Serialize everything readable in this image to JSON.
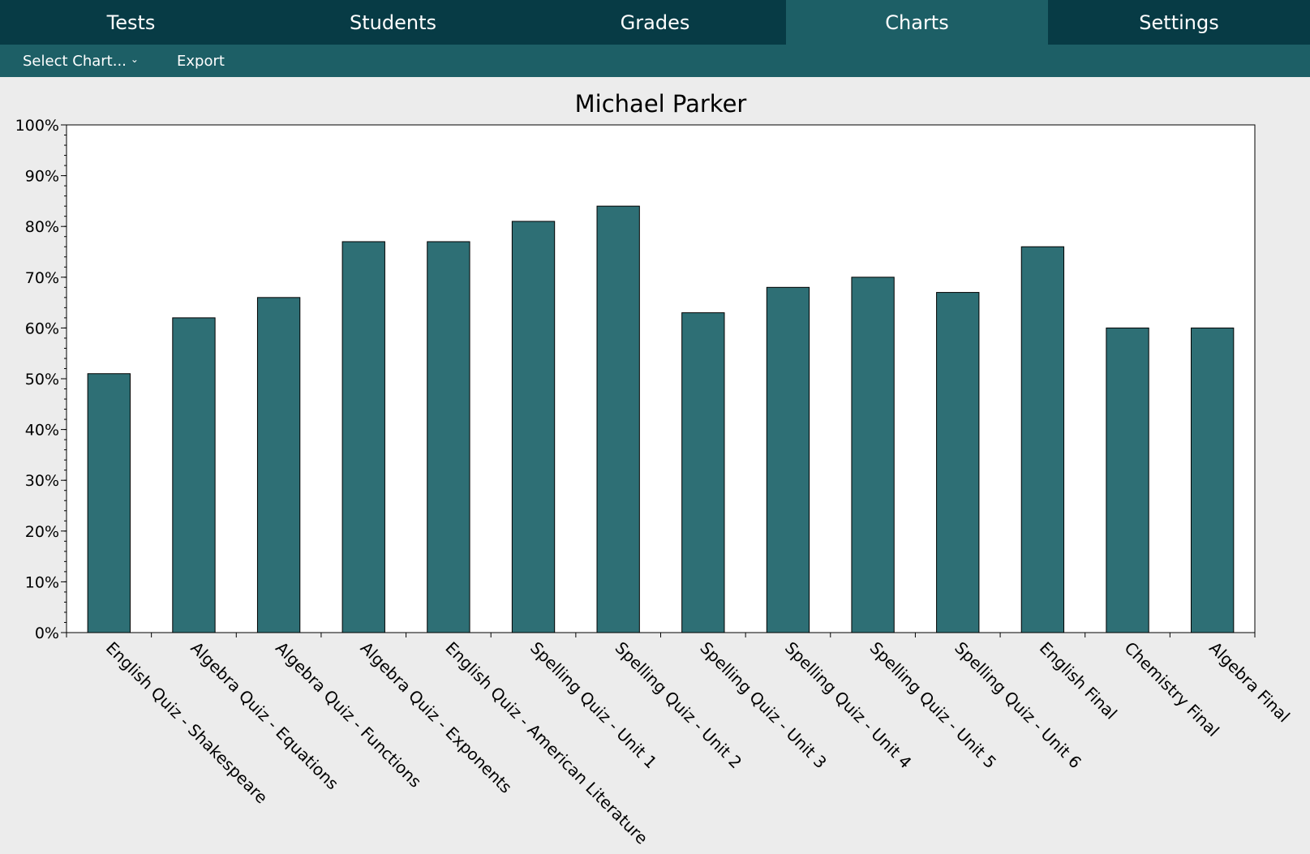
{
  "tabs": [
    {
      "label": "Tests",
      "active": false
    },
    {
      "label": "Students",
      "active": false
    },
    {
      "label": "Grades",
      "active": false
    },
    {
      "label": "Charts",
      "active": true
    },
    {
      "label": "Settings",
      "active": false
    }
  ],
  "toolbar": {
    "select_chart_label": "Select Chart...",
    "select_chart_icon": "chevron-down-icon",
    "export_label": "Export"
  },
  "colors": {
    "nav_dark": "#073b45",
    "nav_active": "#1d5f66",
    "bar_fill": "#2e6f75",
    "background": "#ececec",
    "plot_background": "#ffffff"
  },
  "chart_data": {
    "type": "bar",
    "title": "Michael Parker",
    "xlabel": "",
    "ylabel": "",
    "ylim": [
      0,
      100
    ],
    "y_ticks": [
      "0%",
      "10%",
      "20%",
      "30%",
      "40%",
      "50%",
      "60%",
      "70%",
      "80%",
      "90%",
      "100%"
    ],
    "y_tick_values": [
      0,
      10,
      20,
      30,
      40,
      50,
      60,
      70,
      80,
      90,
      100
    ],
    "grid": false,
    "categories": [
      "English Quiz - Shakespeare",
      "Algebra Quiz - Equations",
      "Algebra Quiz - Functions",
      "Algebra Quiz - Exponents",
      "English Quiz - American Literature",
      "Spelling Quiz - Unit 1",
      "Spelling Quiz - Unit 2",
      "Spelling Quiz - Unit 3",
      "Spelling Quiz - Unit 4",
      "Spelling Quiz - Unit 5",
      "Spelling Quiz - Unit 6",
      "English Final",
      "Chemistry Final",
      "Algebra Final"
    ],
    "values": [
      51,
      62,
      66,
      77,
      77,
      81,
      84,
      63,
      68,
      70,
      67,
      76,
      60,
      60
    ]
  }
}
